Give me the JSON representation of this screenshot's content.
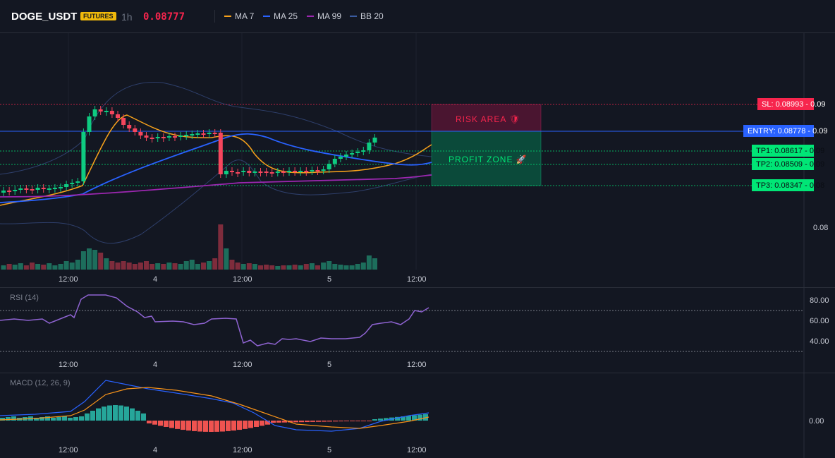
{
  "header": {
    "symbol": "DOGE_USDT",
    "badge": "FUTURES",
    "timeframe": "1h",
    "price": "0.08777",
    "legend": [
      {
        "label": "MA 7",
        "color": "#f7a21b"
      },
      {
        "label": "MA 25",
        "color": "#2962ff"
      },
      {
        "label": "MA 99",
        "color": "#9c27b0"
      },
      {
        "label": "BB 20",
        "color": "#3a5ba0"
      }
    ]
  },
  "colors": {
    "up": "#0ecb81",
    "down": "#f6465d",
    "vol_up": "#1d6e5c",
    "vol_down": "#7e2c3c",
    "rsi": "#8e63d1",
    "macd_hist_up": "#26a69a",
    "macd_hist_down": "#ef5350"
  },
  "main_chart": {
    "price_axis_label": "0.08",
    "time_labels": [
      "12:00",
      "4",
      "12:00",
      "5",
      "12:00"
    ],
    "levels": [
      {
        "label": "SL: 0.08993 - 0.09",
        "color": "#f7254d",
        "text_color": "#ffffff"
      },
      {
        "label": "ENTRY: 0.08778 - 0.09",
        "color": "#2962ff",
        "text_color": "#ffffff"
      },
      {
        "label": "TP1: 0.08617 - 0.09",
        "color": "#00e676",
        "text_color": "#0b0e14"
      },
      {
        "label": "TP2: 0.08509 - 0.09",
        "color": "#00e676",
        "text_color": "#0b0e14"
      },
      {
        "label": "TP3: 0.08347 - 0.08",
        "color": "#00e676",
        "text_color": "#0b0e14"
      }
    ],
    "risk_zone_label": "RISK AREA 🛡",
    "profit_zone_label": "PROFIT ZONE 🚀"
  },
  "rsi_panel": {
    "title": "RSI (14)",
    "ticks": [
      "80.00",
      "60.00",
      "40.00"
    ],
    "time_labels": [
      "12:00",
      "4",
      "12:00",
      "5",
      "12:00"
    ]
  },
  "macd_panel": {
    "title": "MACD (12, 26, 9)",
    "ticks": [
      "0.00"
    ],
    "time_labels": [
      "12:00",
      "4",
      "12:00",
      "5",
      "12:00"
    ]
  }
}
